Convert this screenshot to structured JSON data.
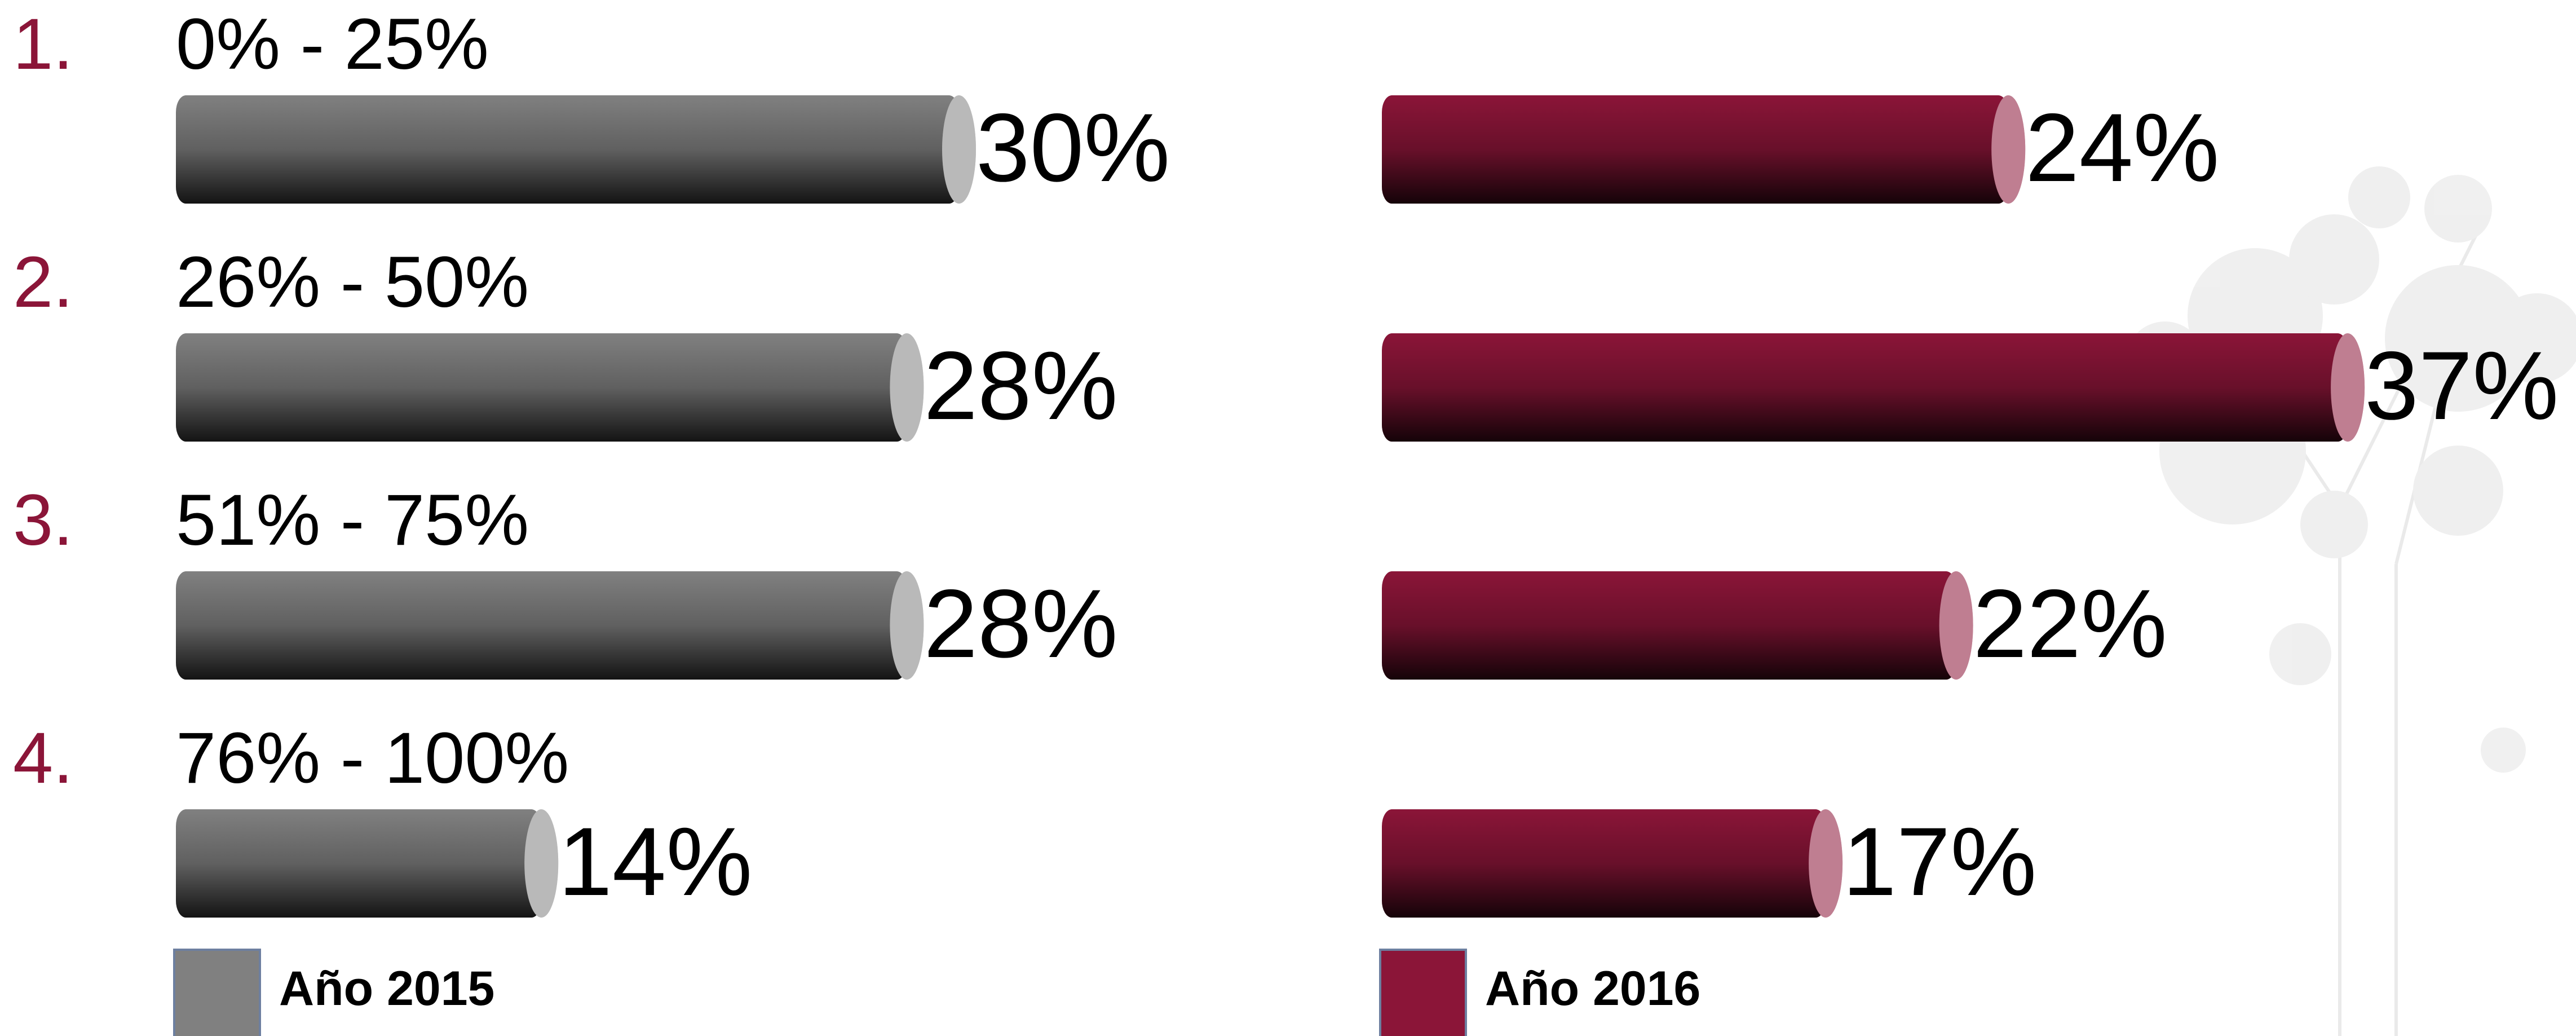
{
  "chart_data": {
    "type": "bar",
    "category_numbers": [
      "1.",
      "2.",
      "3.",
      "4."
    ],
    "number_color": "#8b1538",
    "categories": [
      "0% - 25%",
      "26% - 50%",
      "51% - 75%",
      "76% - 100%"
    ],
    "series": [
      {
        "name": "Año 2015",
        "color": "#808080",
        "values": [
          30,
          28,
          28,
          14
        ],
        "value_labels": [
          "30%",
          "28%",
          "28%",
          "14%"
        ]
      },
      {
        "name": "Año 2016",
        "color": "#8b1538",
        "values": [
          24,
          37,
          22,
          17
        ],
        "value_labels": [
          "24%",
          "37%",
          "22%",
          "17%"
        ]
      }
    ]
  }
}
